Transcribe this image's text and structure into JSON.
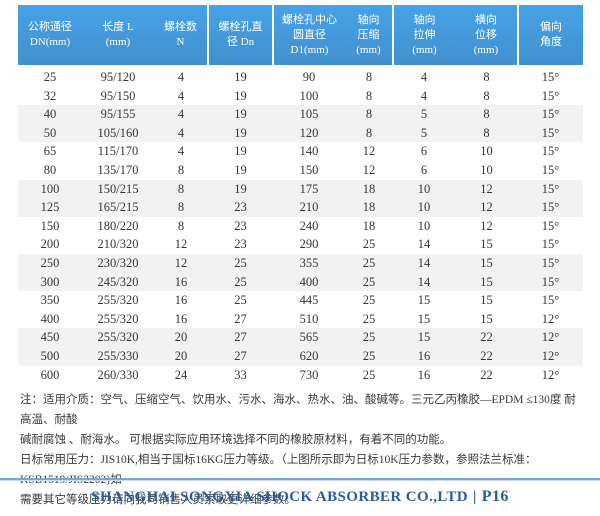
{
  "table": {
    "headers": [
      "公称通径\nDN(mm)",
      "长度 L\n(mm)",
      "螺栓数\nN",
      "螺栓孔直\n径 Dn",
      "螺栓孔中心\n圆直径\nD1(mm)",
      "轴向\n压缩\n(mm)",
      "轴向\n拉伸\n(mm)",
      "横向\n位移\n(mm)",
      "偏向\n角度"
    ],
    "rows": [
      [
        "25",
        "95/120",
        "4",
        "19",
        "90",
        "8",
        "4",
        "8",
        "15°"
      ],
      [
        "32",
        "95/150",
        "4",
        "19",
        "100",
        "8",
        "4",
        "8",
        "15°"
      ],
      [
        "40",
        "95/155",
        "4",
        "19",
        "105",
        "8",
        "5",
        "8",
        "15°"
      ],
      [
        "50",
        "105/160",
        "4",
        "19",
        "120",
        "8",
        "5",
        "8",
        "15°"
      ],
      [
        "65",
        "115/170",
        "4",
        "19",
        "140",
        "12",
        "6",
        "10",
        "15°"
      ],
      [
        "80",
        "135/170",
        "8",
        "19",
        "150",
        "12",
        "6",
        "10",
        "15°"
      ],
      [
        "100",
        "150/215",
        "8",
        "19",
        "175",
        "18",
        "10",
        "12",
        "15°"
      ],
      [
        "125",
        "165/215",
        "8",
        "23",
        "210",
        "18",
        "10",
        "12",
        "15°"
      ],
      [
        "150",
        "180/220",
        "8",
        "23",
        "240",
        "18",
        "10",
        "12",
        "15°"
      ],
      [
        "200",
        "210/320",
        "12",
        "23",
        "290",
        "25",
        "14",
        "15",
        "15°"
      ],
      [
        "250",
        "230/320",
        "12",
        "25",
        "355",
        "25",
        "14",
        "15",
        "15°"
      ],
      [
        "300",
        "245/320",
        "16",
        "25",
        "400",
        "25",
        "14",
        "15",
        "15°"
      ],
      [
        "350",
        "255/320",
        "16",
        "25",
        "445",
        "25",
        "15",
        "15",
        "15°"
      ],
      [
        "400",
        "255/320",
        "16",
        "27",
        "510",
        "25",
        "15",
        "15",
        "12°"
      ],
      [
        "450",
        "255/320",
        "20",
        "27",
        "565",
        "25",
        "15",
        "22",
        "12°"
      ],
      [
        "500",
        "255/330",
        "20",
        "27",
        "620",
        "25",
        "16",
        "22",
        "12°"
      ],
      [
        "600",
        "260/330",
        "24",
        "33",
        "730",
        "25",
        "16",
        "22",
        "12°"
      ]
    ]
  },
  "notes": {
    "lines": [
      "注：适用介质：空气、压缩空气、饮用水、污水、海水、热水、油、酸碱等。三元乙丙橡胶—EPDM ≤130度 耐高温、耐酸",
      "碱耐腐蚀 、耐海水。 可根据实际应用环境选择不同的橡胶原材料，有着不同的功能。",
      "日标常用压力：JIS10K,相当于国标16KG压力等级。（上图所示即为日标10K压力参数，参照法兰标准：KSB1519/JIS2202)如",
      "需要其它等级压力请向我司销售人员索取更详细参数。"
    ]
  },
  "footer": {
    "company": "SHANGHAI SONGXIA SHOCK ABSORBER CO.,LTD",
    "separator": "|",
    "page": "P16"
  },
  "colors": {
    "header_bg": "#4499dd",
    "header_text": "#ffffff",
    "row_stripe": "#f2f2f2",
    "body_text": "#363636",
    "footer_text": "#2b5c9e",
    "footer_rule": "#7aa6cf"
  }
}
